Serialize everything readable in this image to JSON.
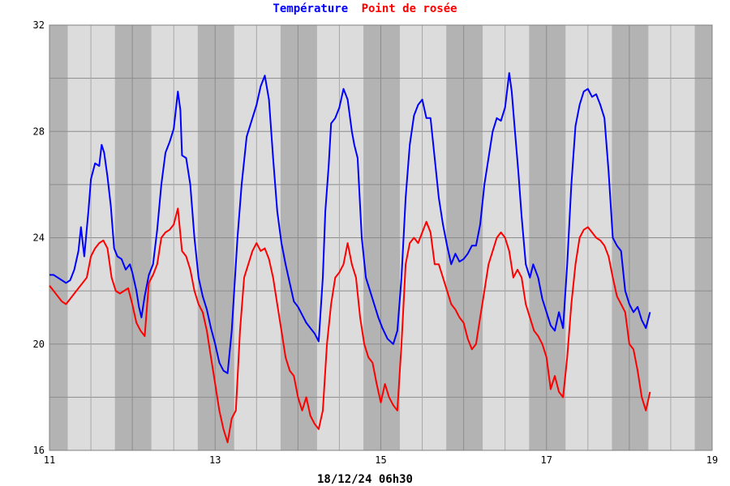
{
  "chart_data": {
    "type": "line",
    "title_parts": [
      {
        "text": "Température",
        "color": "#0000ff"
      },
      {
        "text": "Point de rosée",
        "color": "#ff0000"
      }
    ],
    "footer": "18/12/24 06h30",
    "xlim": [
      11,
      19
    ],
    "ylim": [
      16,
      32
    ],
    "x_ticks": [
      11,
      13,
      15,
      17,
      19
    ],
    "y_ticks": [
      16,
      20,
      24,
      28,
      32
    ],
    "grid": true,
    "night_bands": [
      [
        11.0,
        11.22
      ],
      [
        11.79,
        12.23
      ],
      [
        12.79,
        13.23
      ],
      [
        13.79,
        14.23
      ],
      [
        14.79,
        15.23
      ],
      [
        15.79,
        16.23
      ],
      [
        16.79,
        17.23
      ],
      [
        17.79,
        18.23
      ],
      [
        18.79,
        19.0
      ]
    ],
    "series": [
      {
        "name": "Température",
        "color": "#0000ff",
        "points": [
          [
            11.0,
            22.6
          ],
          [
            11.05,
            22.6
          ],
          [
            11.1,
            22.5
          ],
          [
            11.15,
            22.4
          ],
          [
            11.2,
            22.3
          ],
          [
            11.25,
            22.4
          ],
          [
            11.3,
            22.8
          ],
          [
            11.35,
            23.5
          ],
          [
            11.38,
            24.4
          ],
          [
            11.42,
            23.3
          ],
          [
            11.47,
            25.0
          ],
          [
            11.5,
            26.2
          ],
          [
            11.55,
            26.8
          ],
          [
            11.6,
            26.7
          ],
          [
            11.63,
            27.5
          ],
          [
            11.66,
            27.2
          ],
          [
            11.7,
            26.3
          ],
          [
            11.74,
            25.2
          ],
          [
            11.78,
            23.6
          ],
          [
            11.82,
            23.3
          ],
          [
            11.87,
            23.2
          ],
          [
            11.92,
            22.8
          ],
          [
            11.97,
            23.0
          ],
          [
            12.0,
            22.7
          ],
          [
            12.05,
            22.0
          ],
          [
            12.08,
            21.4
          ],
          [
            12.11,
            21.0
          ],
          [
            12.15,
            21.8
          ],
          [
            12.2,
            22.6
          ],
          [
            12.25,
            23.0
          ],
          [
            12.3,
            24.3
          ],
          [
            12.35,
            26.0
          ],
          [
            12.4,
            27.2
          ],
          [
            12.45,
            27.6
          ],
          [
            12.5,
            28.1
          ],
          [
            12.55,
            29.5
          ],
          [
            12.58,
            28.8
          ],
          [
            12.6,
            27.1
          ],
          [
            12.65,
            27.0
          ],
          [
            12.7,
            26.0
          ],
          [
            12.75,
            24.0
          ],
          [
            12.8,
            22.5
          ],
          [
            12.85,
            21.8
          ],
          [
            12.9,
            21.3
          ],
          [
            12.95,
            20.6
          ],
          [
            13.0,
            20.0
          ],
          [
            13.05,
            19.3
          ],
          [
            13.1,
            19.0
          ],
          [
            13.15,
            18.9
          ],
          [
            13.2,
            20.5
          ],
          [
            13.27,
            24.0
          ],
          [
            13.32,
            26.0
          ],
          [
            13.38,
            27.8
          ],
          [
            13.45,
            28.5
          ],
          [
            13.5,
            29.0
          ],
          [
            13.55,
            29.7
          ],
          [
            13.6,
            30.1
          ],
          [
            13.65,
            29.2
          ],
          [
            13.7,
            27.0
          ],
          [
            13.75,
            25.0
          ],
          [
            13.8,
            23.8
          ],
          [
            13.85,
            23.0
          ],
          [
            13.9,
            22.3
          ],
          [
            13.95,
            21.6
          ],
          [
            14.0,
            21.4
          ],
          [
            14.05,
            21.1
          ],
          [
            14.1,
            20.8
          ],
          [
            14.15,
            20.6
          ],
          [
            14.2,
            20.4
          ],
          [
            14.25,
            20.1
          ],
          [
            14.3,
            22.5
          ],
          [
            14.33,
            25.0
          ],
          [
            14.37,
            26.7
          ],
          [
            14.4,
            28.3
          ],
          [
            14.45,
            28.5
          ],
          [
            14.5,
            28.9
          ],
          [
            14.55,
            29.6
          ],
          [
            14.6,
            29.2
          ],
          [
            14.65,
            28.0
          ],
          [
            14.68,
            27.5
          ],
          [
            14.72,
            27.0
          ],
          [
            14.77,
            24.0
          ],
          [
            14.82,
            22.5
          ],
          [
            14.87,
            22.0
          ],
          [
            14.92,
            21.5
          ],
          [
            14.97,
            21.0
          ],
          [
            15.02,
            20.6
          ],
          [
            15.08,
            20.2
          ],
          [
            15.15,
            20.0
          ],
          [
            15.2,
            20.5
          ],
          [
            15.25,
            22.5
          ],
          [
            15.3,
            25.5
          ],
          [
            15.35,
            27.5
          ],
          [
            15.4,
            28.6
          ],
          [
            15.45,
            29.0
          ],
          [
            15.5,
            29.2
          ],
          [
            15.55,
            28.5
          ],
          [
            15.6,
            28.5
          ],
          [
            15.65,
            27.0
          ],
          [
            15.7,
            25.5
          ],
          [
            15.75,
            24.5
          ],
          [
            15.8,
            23.7
          ],
          [
            15.85,
            23.0
          ],
          [
            15.9,
            23.4
          ],
          [
            15.95,
            23.1
          ],
          [
            16.0,
            23.2
          ],
          [
            16.05,
            23.4
          ],
          [
            16.1,
            23.7
          ],
          [
            16.15,
            23.7
          ],
          [
            16.2,
            24.5
          ],
          [
            16.25,
            26.0
          ],
          [
            16.3,
            27.0
          ],
          [
            16.35,
            28.0
          ],
          [
            16.4,
            28.5
          ],
          [
            16.45,
            28.4
          ],
          [
            16.5,
            28.9
          ],
          [
            16.55,
            30.2
          ],
          [
            16.58,
            29.5
          ],
          [
            16.62,
            28.0
          ],
          [
            16.66,
            26.5
          ],
          [
            16.7,
            24.8
          ],
          [
            16.75,
            23.0
          ],
          [
            16.8,
            22.5
          ],
          [
            16.84,
            23.0
          ],
          [
            16.9,
            22.5
          ],
          [
            16.95,
            21.7
          ],
          [
            17.0,
            21.2
          ],
          [
            17.05,
            20.7
          ],
          [
            17.1,
            20.5
          ],
          [
            17.15,
            21.2
          ],
          [
            17.2,
            20.6
          ],
          [
            17.25,
            23.0
          ],
          [
            17.3,
            26.0
          ],
          [
            17.35,
            28.2
          ],
          [
            17.4,
            29.0
          ],
          [
            17.45,
            29.5
          ],
          [
            17.5,
            29.6
          ],
          [
            17.55,
            29.3
          ],
          [
            17.6,
            29.4
          ],
          [
            17.65,
            29.0
          ],
          [
            17.7,
            28.5
          ],
          [
            17.75,
            26.5
          ],
          [
            17.8,
            24.0
          ],
          [
            17.85,
            23.7
          ],
          [
            17.9,
            23.5
          ],
          [
            17.95,
            22.0
          ],
          [
            18.0,
            21.5
          ],
          [
            18.05,
            21.2
          ],
          [
            18.1,
            21.4
          ],
          [
            18.15,
            20.9
          ],
          [
            18.2,
            20.6
          ],
          [
            18.25,
            21.2
          ]
        ]
      },
      {
        "name": "Point de rosée",
        "color": "#ff0000",
        "points": [
          [
            11.0,
            22.2
          ],
          [
            11.05,
            22.0
          ],
          [
            11.1,
            21.8
          ],
          [
            11.15,
            21.6
          ],
          [
            11.2,
            21.5
          ],
          [
            11.25,
            21.7
          ],
          [
            11.3,
            21.9
          ],
          [
            11.35,
            22.1
          ],
          [
            11.4,
            22.3
          ],
          [
            11.45,
            22.5
          ],
          [
            11.5,
            23.3
          ],
          [
            11.55,
            23.6
          ],
          [
            11.6,
            23.8
          ],
          [
            11.65,
            23.9
          ],
          [
            11.7,
            23.6
          ],
          [
            11.75,
            22.5
          ],
          [
            11.8,
            22.0
          ],
          [
            11.85,
            21.9
          ],
          [
            11.9,
            22.0
          ],
          [
            11.95,
            22.1
          ],
          [
            12.0,
            21.5
          ],
          [
            12.05,
            20.8
          ],
          [
            12.1,
            20.5
          ],
          [
            12.15,
            20.3
          ],
          [
            12.2,
            22.3
          ],
          [
            12.25,
            22.6
          ],
          [
            12.3,
            23.0
          ],
          [
            12.35,
            24.0
          ],
          [
            12.4,
            24.2
          ],
          [
            12.45,
            24.3
          ],
          [
            12.5,
            24.5
          ],
          [
            12.55,
            25.1
          ],
          [
            12.6,
            23.5
          ],
          [
            12.65,
            23.3
          ],
          [
            12.7,
            22.8
          ],
          [
            12.75,
            22.0
          ],
          [
            12.8,
            21.5
          ],
          [
            12.85,
            21.2
          ],
          [
            12.9,
            20.5
          ],
          [
            12.95,
            19.5
          ],
          [
            13.0,
            18.5
          ],
          [
            13.05,
            17.5
          ],
          [
            13.1,
            16.8
          ],
          [
            13.15,
            16.3
          ],
          [
            13.2,
            17.2
          ],
          [
            13.25,
            17.5
          ],
          [
            13.3,
            20.5
          ],
          [
            13.35,
            22.5
          ],
          [
            13.4,
            23.0
          ],
          [
            13.45,
            23.5
          ],
          [
            13.5,
            23.8
          ],
          [
            13.55,
            23.5
          ],
          [
            13.6,
            23.6
          ],
          [
            13.65,
            23.2
          ],
          [
            13.7,
            22.5
          ],
          [
            13.75,
            21.5
          ],
          [
            13.8,
            20.5
          ],
          [
            13.85,
            19.5
          ],
          [
            13.9,
            19.0
          ],
          [
            13.95,
            18.8
          ],
          [
            14.0,
            18.0
          ],
          [
            14.05,
            17.5
          ],
          [
            14.1,
            18.0
          ],
          [
            14.15,
            17.3
          ],
          [
            14.2,
            17.0
          ],
          [
            14.25,
            16.8
          ],
          [
            14.3,
            17.5
          ],
          [
            14.35,
            20.0
          ],
          [
            14.4,
            21.5
          ],
          [
            14.45,
            22.5
          ],
          [
            14.5,
            22.7
          ],
          [
            14.55,
            23.0
          ],
          [
            14.6,
            23.8
          ],
          [
            14.65,
            23.0
          ],
          [
            14.7,
            22.5
          ],
          [
            14.75,
            21.0
          ],
          [
            14.8,
            20.0
          ],
          [
            14.85,
            19.5
          ],
          [
            14.9,
            19.3
          ],
          [
            14.95,
            18.5
          ],
          [
            15.0,
            17.8
          ],
          [
            15.05,
            18.5
          ],
          [
            15.1,
            18.0
          ],
          [
            15.15,
            17.7
          ],
          [
            15.2,
            17.5
          ],
          [
            15.25,
            20.0
          ],
          [
            15.3,
            23.0
          ],
          [
            15.35,
            23.8
          ],
          [
            15.4,
            24.0
          ],
          [
            15.45,
            23.8
          ],
          [
            15.5,
            24.2
          ],
          [
            15.55,
            24.6
          ],
          [
            15.6,
            24.2
          ],
          [
            15.65,
            23.0
          ],
          [
            15.7,
            23.0
          ],
          [
            15.75,
            22.5
          ],
          [
            15.8,
            22.0
          ],
          [
            15.85,
            21.5
          ],
          [
            15.9,
            21.3
          ],
          [
            15.95,
            21.0
          ],
          [
            16.0,
            20.8
          ],
          [
            16.05,
            20.2
          ],
          [
            16.1,
            19.8
          ],
          [
            16.15,
            20.0
          ],
          [
            16.2,
            21.0
          ],
          [
            16.25,
            22.0
          ],
          [
            16.3,
            23.0
          ],
          [
            16.35,
            23.5
          ],
          [
            16.4,
            24.0
          ],
          [
            16.45,
            24.2
          ],
          [
            16.5,
            24.0
          ],
          [
            16.55,
            23.5
          ],
          [
            16.6,
            22.5
          ],
          [
            16.65,
            22.8
          ],
          [
            16.7,
            22.5
          ],
          [
            16.75,
            21.5
          ],
          [
            16.8,
            21.0
          ],
          [
            16.85,
            20.5
          ],
          [
            16.9,
            20.3
          ],
          [
            16.95,
            20.0
          ],
          [
            17.0,
            19.5
          ],
          [
            17.05,
            18.3
          ],
          [
            17.1,
            18.8
          ],
          [
            17.15,
            18.2
          ],
          [
            17.2,
            18.0
          ],
          [
            17.25,
            19.5
          ],
          [
            17.3,
            21.5
          ],
          [
            17.35,
            23.0
          ],
          [
            17.4,
            24.0
          ],
          [
            17.45,
            24.3
          ],
          [
            17.5,
            24.4
          ],
          [
            17.55,
            24.2
          ],
          [
            17.6,
            24.0
          ],
          [
            17.65,
            23.9
          ],
          [
            17.7,
            23.7
          ],
          [
            17.75,
            23.3
          ],
          [
            17.8,
            22.5
          ],
          [
            17.85,
            21.8
          ],
          [
            17.9,
            21.5
          ],
          [
            17.95,
            21.2
          ],
          [
            18.0,
            20.0
          ],
          [
            18.05,
            19.8
          ],
          [
            18.1,
            19.0
          ],
          [
            18.15,
            18.0
          ],
          [
            18.2,
            17.5
          ],
          [
            18.25,
            18.2
          ]
        ]
      }
    ]
  }
}
